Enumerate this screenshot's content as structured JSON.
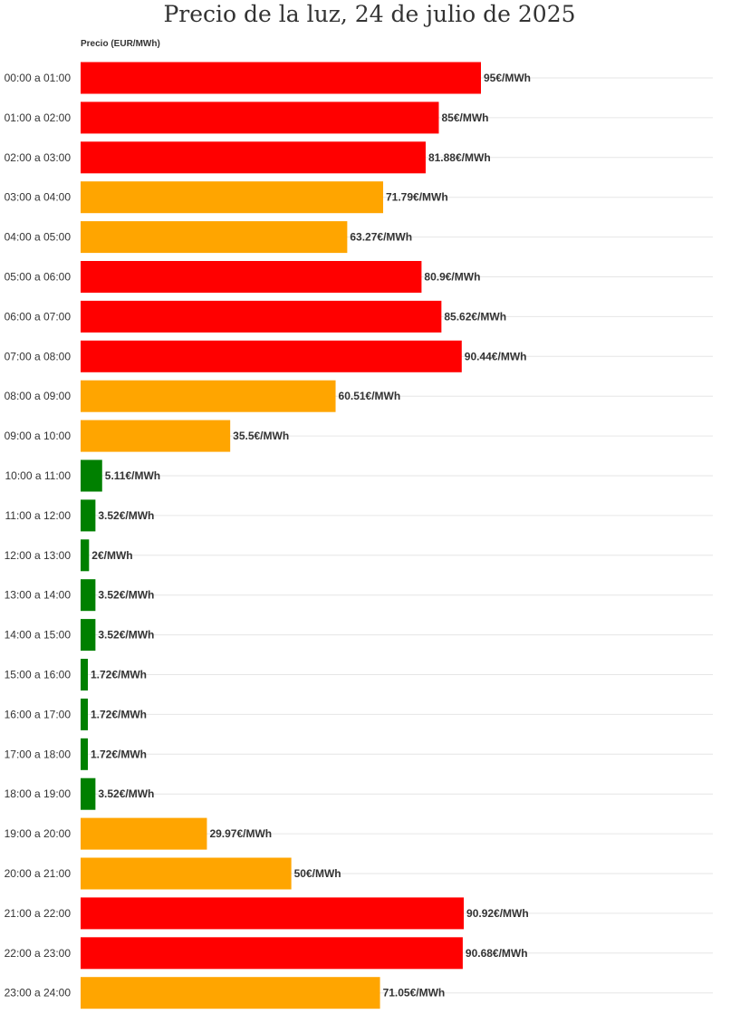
{
  "chart_data": {
    "type": "bar",
    "orientation": "horizontal",
    "title": "Precio de la luz, 24 de julio de 2025",
    "ylabel": "Precio (EUR/MWh)",
    "value_suffix": "€/MWh",
    "xlim": [
      0,
      110
    ],
    "grid": true,
    "categories": [
      "00:00 a 01:00",
      "01:00 a 02:00",
      "02:00 a 03:00",
      "03:00 a 04:00",
      "04:00 a 05:00",
      "05:00 a 06:00",
      "06:00 a 07:00",
      "07:00 a 08:00",
      "08:00 a 09:00",
      "09:00 a 10:00",
      "10:00 a 11:00",
      "11:00 a 12:00",
      "12:00 a 13:00",
      "13:00 a 14:00",
      "14:00 a 15:00",
      "15:00 a 16:00",
      "16:00 a 17:00",
      "17:00 a 18:00",
      "18:00 a 19:00",
      "19:00 a 20:00",
      "20:00 a 21:00",
      "21:00 a 22:00",
      "22:00 a 23:00",
      "23:00 a 24:00"
    ],
    "values": [
      95,
      85,
      81.88,
      71.79,
      63.27,
      80.9,
      85.62,
      90.44,
      60.51,
      35.5,
      5.11,
      3.52,
      2,
      3.52,
      3.52,
      1.72,
      1.72,
      1.72,
      3.52,
      29.97,
      50,
      90.92,
      90.68,
      71.05
    ],
    "bar_colors": [
      "#ff0000",
      "#ff0000",
      "#ff0000",
      "#ffa500",
      "#ffa500",
      "#ff0000",
      "#ff0000",
      "#ff0000",
      "#ffa500",
      "#ffa500",
      "#008000",
      "#008000",
      "#008000",
      "#008000",
      "#008000",
      "#008000",
      "#008000",
      "#008000",
      "#008000",
      "#ffa500",
      "#ffa500",
      "#ff0000",
      "#ff0000",
      "#ffa500"
    ]
  }
}
